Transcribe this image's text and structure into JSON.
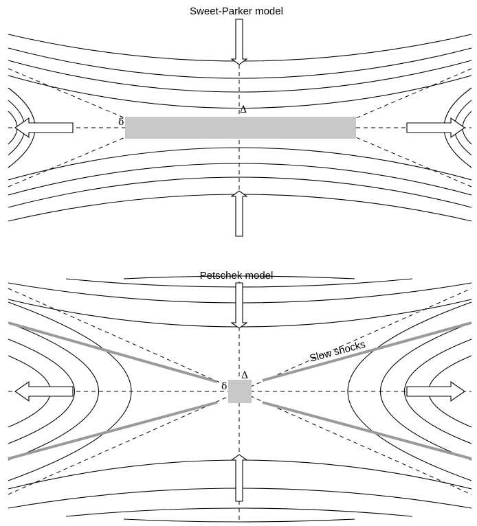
{
  "panels": {
    "sweet_parker": {
      "title": "Sweet-Parker model",
      "delta_small": "δ",
      "delta_large": "Δ"
    },
    "petschek": {
      "title": "Petschek model",
      "delta_small": "δ",
      "delta_large": "Δ",
      "shock_label": "Slow shocks"
    }
  },
  "colors": {
    "diffusion_region": "#c8c8c8",
    "slow_shocks": "#9a9a9a",
    "field_lines": "#000000"
  },
  "icons": [
    "inflow-arrow-icon",
    "outflow-arrow-icon"
  ]
}
